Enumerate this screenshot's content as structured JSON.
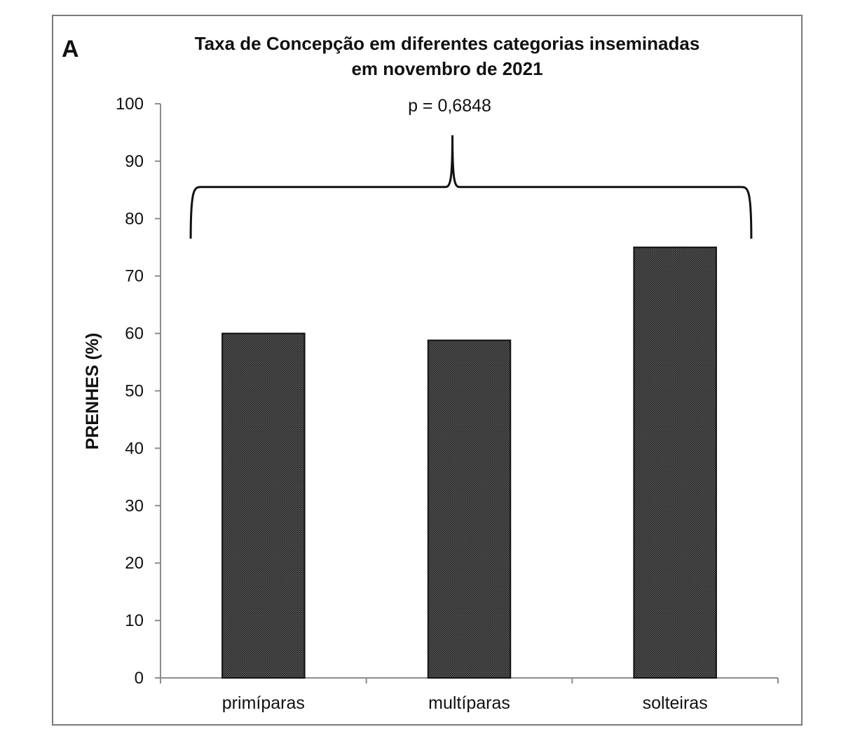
{
  "panel_label": "A",
  "colors": {
    "bar_fill": "#4a4a4a",
    "bar_pattern_dot": "#1e1e1e",
    "axis": "#8c8c8c",
    "frame": "#7a7a7a",
    "text": "#111111"
  },
  "chart_data": {
    "type": "bar",
    "title": [
      "Taxa de Concepção em diferentes categorias inseminadas",
      "em novembro de 2021"
    ],
    "xlabel": "",
    "ylabel": "PRENHES (%)",
    "categories": [
      "primíparas",
      "multíparas",
      "solteiras"
    ],
    "values": [
      60,
      58.8,
      75
    ],
    "ylim": [
      0,
      100
    ],
    "yticks": [
      0,
      10,
      20,
      30,
      40,
      50,
      60,
      70,
      80,
      90,
      100
    ],
    "grid": false,
    "legend": "none",
    "annotation": {
      "text": "p = 0,6848",
      "spans": "all categories",
      "bracket_level": 85.5
    }
  }
}
